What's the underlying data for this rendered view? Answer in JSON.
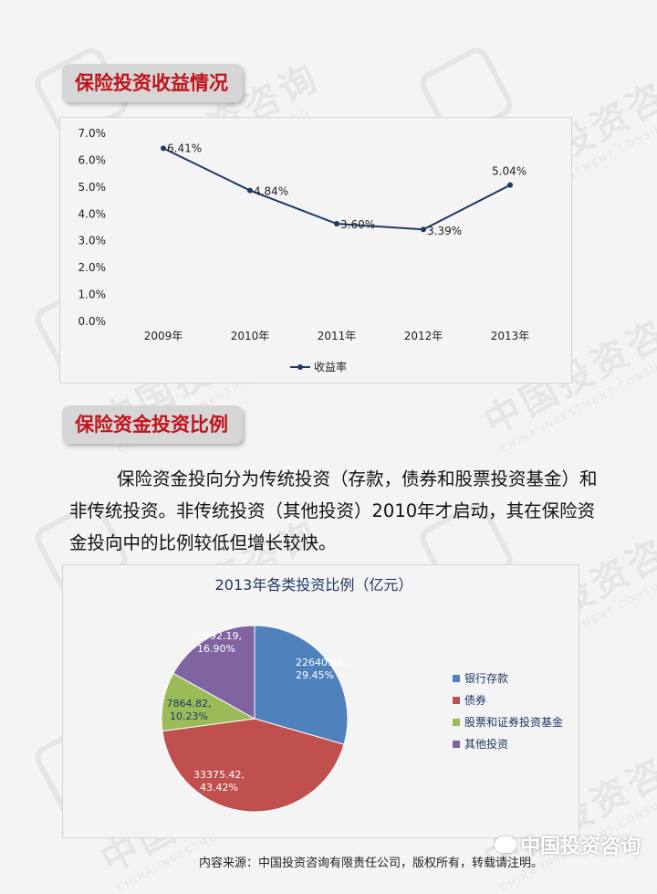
{
  "watermark": {
    "cn": "中国投资咨询",
    "en": "CHINA INVESTMENT CONSULTING"
  },
  "section1": {
    "title": "保险投资收益情况"
  },
  "section2": {
    "title": "保险资金投资比例"
  },
  "paragraph": "保险资金投向分为传统投资（存款，债券和股票投资基金）和非传统投资。非传统投资（其他投资）2010年才启动，其在保险资金投向中的比例较低但增长较快。",
  "footer": "内容来源：中国投资咨询有限责任公司，版权所有，转载请注明。",
  "brand": "中国投资咨询",
  "chart_data": [
    {
      "type": "line",
      "title": "",
      "categories": [
        "2009年",
        "2010年",
        "2011年",
        "2012年",
        "2013年"
      ],
      "series": [
        {
          "name": "收益率",
          "values": [
            6.41,
            4.84,
            3.6,
            3.39,
            5.04
          ],
          "labels": [
            "6.41%",
            "4.84%",
            "3.60%",
            "3.39%",
            "5.04%"
          ],
          "color": "#1f3864"
        }
      ],
      "yticks": [
        "0.0%",
        "1.0%",
        "2.0%",
        "3.0%",
        "4.0%",
        "5.0%",
        "6.0%",
        "7.0%"
      ],
      "ylim": [
        0,
        7
      ],
      "grid": false,
      "legend": "bottom"
    },
    {
      "type": "pie",
      "title": "2013年各类投资比例（亿元）",
      "slices": [
        {
          "name": "银行存款",
          "value": 22640.98,
          "percent": 29.45,
          "value_label": "22640.98,",
          "percent_label": "29.45%",
          "color": "#4f81bd"
        },
        {
          "name": "债券",
          "value": 33375.42,
          "percent": 43.42,
          "value_label": "33375.42,",
          "percent_label": "43.42%",
          "color": "#c0504d"
        },
        {
          "name": "股票和证券投资基金",
          "value": 7864.82,
          "percent": 10.23,
          "value_label": "7864.82,",
          "percent_label": "10.23%",
          "color": "#9bbb59"
        },
        {
          "name": "其他投资",
          "value": 12992.19,
          "percent": 16.9,
          "value_label": "12992.19,",
          "percent_label": "16.90%",
          "color": "#8064a2"
        }
      ],
      "legend": "right"
    }
  ]
}
